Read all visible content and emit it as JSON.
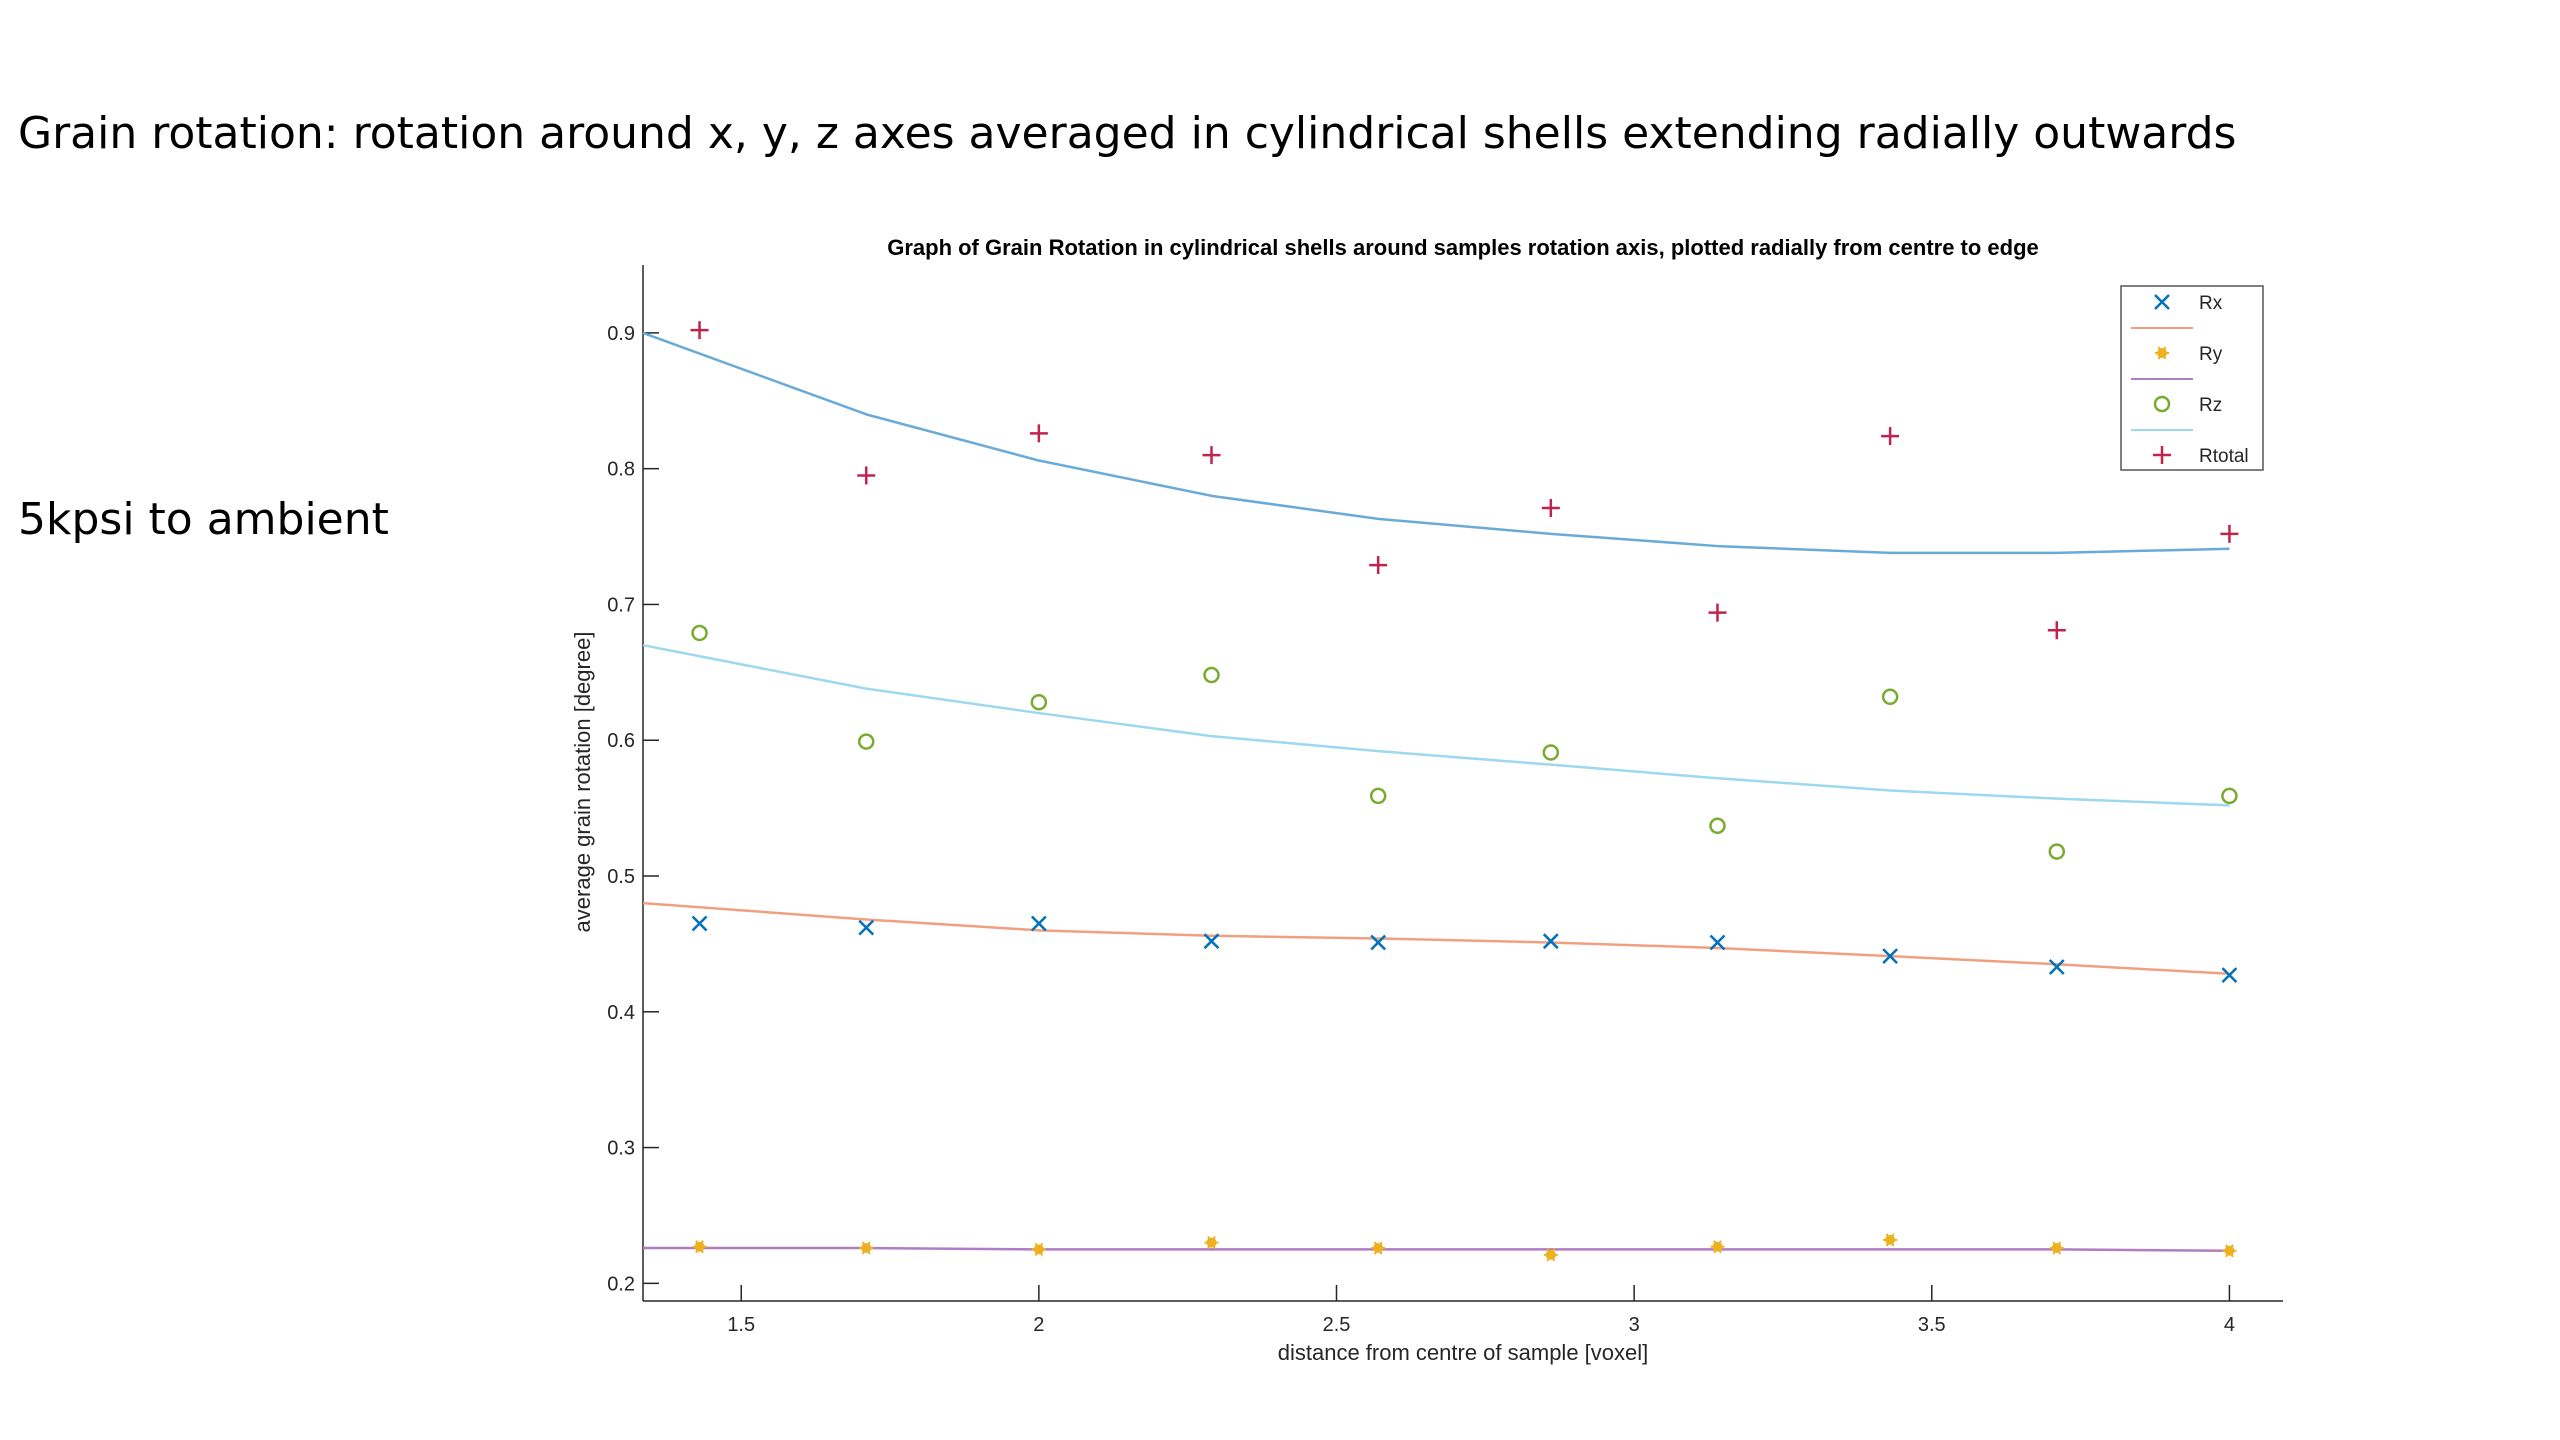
{
  "slide": {
    "heading": "Grain rotation: rotation around x, y, z axes averaged in cylindrical shells extending radially outwards",
    "condition_label": "5kpsi to ambient"
  },
  "chart_data": {
    "type": "scatter",
    "title": "Graph of Grain Rotation in cylindrical shells around  samples rotation axis, plotted radially from centre to edge",
    "xlabel": "distance from centre of sample [voxel]",
    "ylabel": "average grain rotation [degree]",
    "xlim": [
      1.335,
      4.09
    ],
    "ylim": [
      0.187,
      0.95
    ],
    "xticks": [
      1.5,
      2,
      2.5,
      3,
      3.5,
      4
    ],
    "xtick_labels": [
      "1.5",
      "2",
      "2.5",
      "3",
      "3.5",
      "4"
    ],
    "yticks": [
      0.2,
      0.3,
      0.4,
      0.5,
      0.6,
      0.7,
      0.8,
      0.9
    ],
    "ytick_labels": [
      "0.2",
      "0.3",
      "0.4",
      "0.5",
      "0.6",
      "0.7",
      "0.8",
      "0.9"
    ],
    "grid": false,
    "legend_placement": "top-right",
    "x": [
      1.43,
      1.71,
      2.0,
      2.29,
      2.57,
      2.86,
      3.14,
      3.43,
      3.71,
      4.0
    ],
    "series": [
      {
        "name": "Rx",
        "marker": "x",
        "color": "#0072BD",
        "values": [
          0.465,
          0.462,
          0.465,
          0.452,
          0.451,
          0.452,
          0.451,
          0.441,
          0.433,
          0.427
        ]
      },
      {
        "name": "Ry",
        "marker": "asterisk",
        "color": "#EDB120",
        "values": [
          0.227,
          0.226,
          0.225,
          0.23,
          0.226,
          0.221,
          0.227,
          0.232,
          0.226,
          0.224
        ]
      },
      {
        "name": "Rz",
        "marker": "circle",
        "color": "#77AC30",
        "values": [
          0.679,
          0.599,
          0.628,
          0.648,
          0.559,
          0.591,
          0.537,
          0.632,
          0.518,
          0.559
        ]
      },
      {
        "name": "Rtotal",
        "marker": "plus",
        "color": "#C0244C",
        "values": [
          0.902,
          0.795,
          0.826,
          0.81,
          0.729,
          0.771,
          0.694,
          0.824,
          0.681,
          0.752
        ]
      }
    ],
    "fit_lines": {
      "x": [
        1.335,
        1.71,
        2.0,
        2.29,
        2.57,
        2.86,
        3.14,
        3.43,
        3.71,
        4.0
      ],
      "lines": [
        {
          "color": "#F0A080",
          "values": [
            0.48,
            0.468,
            0.46,
            0.456,
            0.454,
            0.451,
            0.447,
            0.441,
            0.435,
            0.428
          ]
        },
        {
          "color": "#B07CC6",
          "values": [
            0.226,
            0.226,
            0.225,
            0.225,
            0.225,
            0.225,
            0.225,
            0.225,
            0.225,
            0.224
          ]
        },
        {
          "color": "#9ED8F0",
          "values": [
            0.67,
            0.638,
            0.62,
            0.603,
            0.592,
            0.582,
            0.572,
            0.563,
            0.557,
            0.552
          ]
        },
        {
          "color": "#6AAAD8",
          "values": [
            0.9,
            0.84,
            0.806,
            0.78,
            0.763,
            0.752,
            0.743,
            0.738,
            0.738,
            0.741
          ]
        }
      ]
    }
  }
}
